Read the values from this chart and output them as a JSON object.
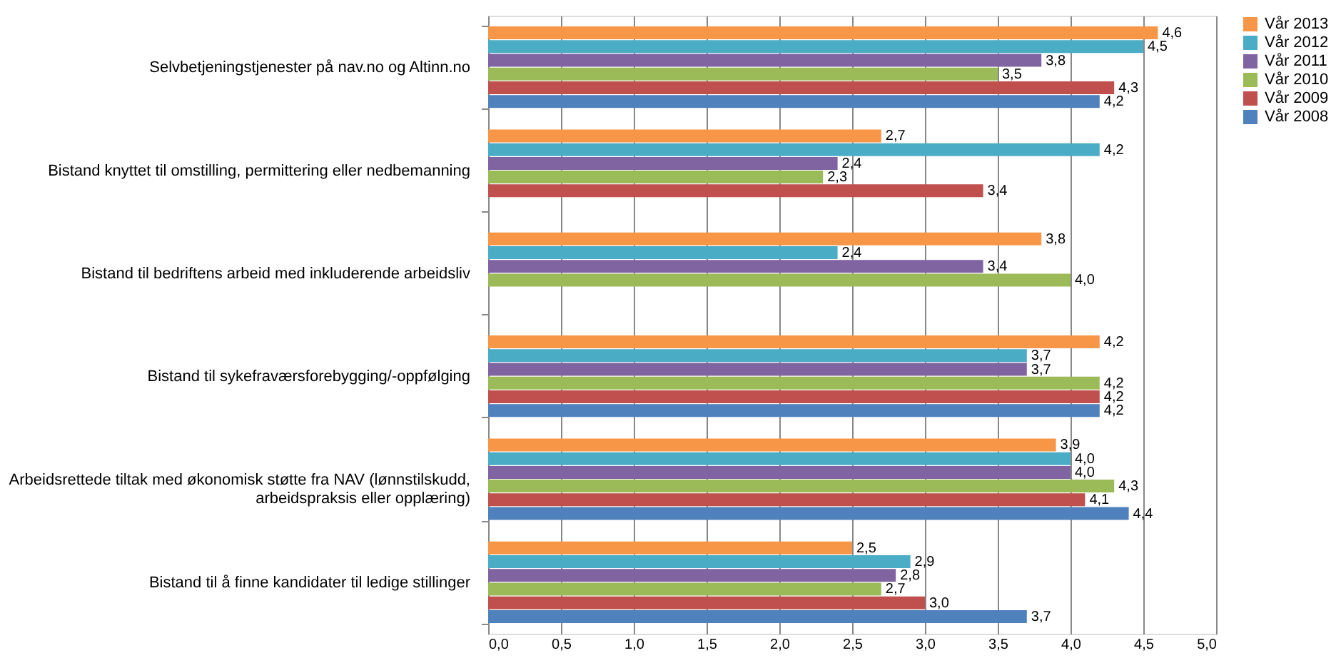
{
  "chart_data": {
    "type": "bar",
    "orientation": "horizontal",
    "categories": [
      "Selvbetjeningstjenester på nav.no og Altinn.no",
      "Bistand knyttet til omstilling, permittering eller nedbemanning",
      "Bistand til bedriftens arbeid med inkluderende arbeidsliv",
      "Bistand til sykefraværsforebygging/-oppfølging",
      "Arbeidsrettede tiltak med økonomisk støtte fra NAV (lønnstilskudd,\narbeidspraksis eller opplæring)",
      "Bistand til å finne kandidater til ledige stillinger"
    ],
    "series": [
      {
        "name": "Vår 2013",
        "color": "#f79646",
        "values": [
          4.6,
          2.7,
          3.8,
          4.2,
          3.9,
          2.5
        ],
        "value_labels": [
          "4,6",
          "2,7",
          "3,8",
          "4,2",
          "3,9",
          "2,5"
        ]
      },
      {
        "name": "Vår 2012",
        "color": "#4bacc6",
        "values": [
          4.5,
          4.2,
          2.4,
          3.7,
          4.0,
          2.9
        ],
        "value_labels": [
          "4,5",
          "4,2",
          "2,4",
          "3,7",
          "4,0",
          "2,9"
        ]
      },
      {
        "name": "Vår 2011",
        "color": "#8064a2",
        "values": [
          3.8,
          2.4,
          3.4,
          3.7,
          4.0,
          2.8
        ],
        "value_labels": [
          "3,8",
          "2,4",
          "3,4",
          "3,7",
          "4,0",
          "2,8"
        ]
      },
      {
        "name": "Vår 2010",
        "color": "#9bbb59",
        "values": [
          3.5,
          2.3,
          4.0,
          4.2,
          4.3,
          2.7
        ],
        "value_labels": [
          "3,5",
          "2,3",
          "4,0",
          "4,2",
          "4,3",
          "2,7"
        ]
      },
      {
        "name": "Vår 2009",
        "color": "#c0504d",
        "values": [
          4.3,
          3.4,
          null,
          4.2,
          4.1,
          3.0
        ],
        "value_labels": [
          "4,3",
          "3,4",
          null,
          "4,2",
          "4,1",
          "3,0"
        ]
      },
      {
        "name": "Vår 2008",
        "color": "#4f81bd",
        "values": [
          4.2,
          null,
          null,
          4.2,
          4.4,
          3.7
        ],
        "value_labels": [
          "4,2",
          null,
          null,
          "4,2",
          "4,4",
          "3,7"
        ]
      }
    ],
    "xlim": [
      0,
      5
    ],
    "xticks": [
      {
        "value": 0,
        "label": "0,0"
      },
      {
        "value": 0.5,
        "label": "0,5"
      },
      {
        "value": 1,
        "label": "1,0"
      },
      {
        "value": 1.5,
        "label": "1,5"
      },
      {
        "value": 2,
        "label": "2,0"
      },
      {
        "value": 2.5,
        "label": "2,5"
      },
      {
        "value": 3,
        "label": "3,0"
      },
      {
        "value": 3.5,
        "label": "3,5"
      },
      {
        "value": 4,
        "label": "4,0"
      },
      {
        "value": 4.5,
        "label": "4,5"
      },
      {
        "value": 5,
        "label": "5,0"
      }
    ],
    "grid": "x",
    "legend": "right"
  }
}
